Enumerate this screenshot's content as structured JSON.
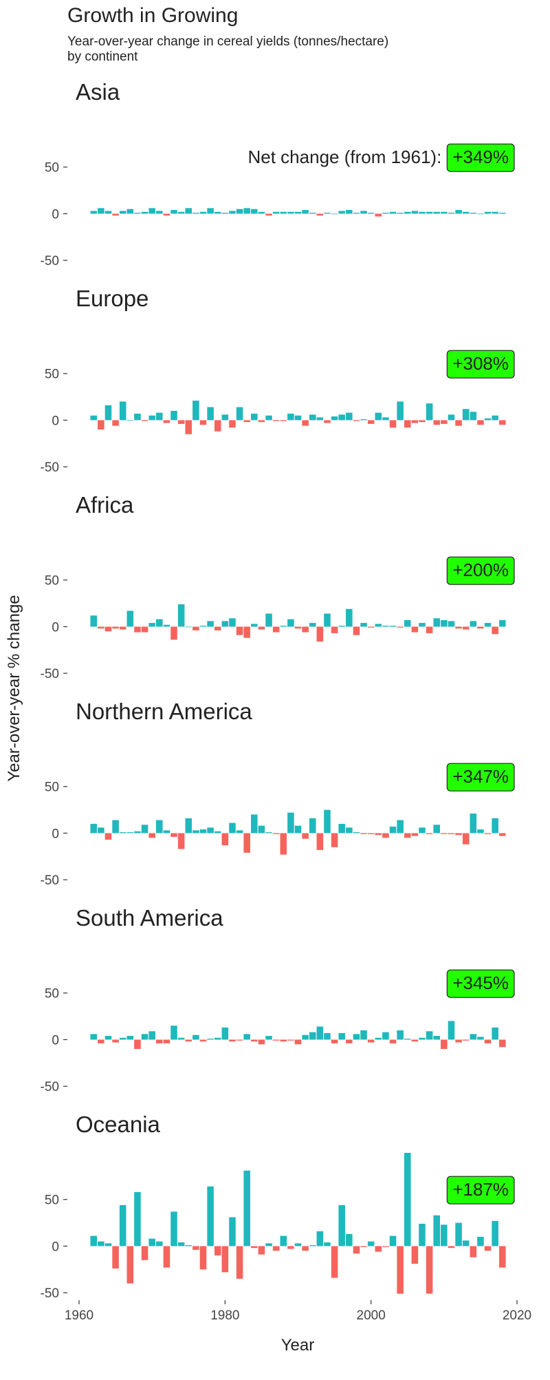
{
  "chart_data": {
    "type": "bar",
    "title": "Growth in Growing",
    "subtitle": [
      "Year-over-year change in cereal yields (tonnes/hectare)",
      "by continent"
    ],
    "x_label": "Year",
    "y_label": "Year-over-year % change",
    "positive_color": "#1fb8bc",
    "negative_color": "#f4645c",
    "badge_color": "#22ff00",
    "xlim": [
      1960,
      2020
    ],
    "xticks": [
      1960,
      1980,
      2000,
      2020
    ],
    "ylim": [
      -55,
      100
    ],
    "yticks": [
      50,
      0,
      -50
    ],
    "x": [
      1962,
      1963,
      1964,
      1965,
      1966,
      1967,
      1968,
      1969,
      1970,
      1971,
      1972,
      1973,
      1974,
      1975,
      1976,
      1977,
      1978,
      1979,
      1980,
      1981,
      1982,
      1983,
      1984,
      1985,
      1986,
      1987,
      1988,
      1989,
      1990,
      1991,
      1992,
      1993,
      1994,
      1995,
      1996,
      1997,
      1998,
      1999,
      2000,
      2001,
      2002,
      2003,
      2004,
      2005,
      2006,
      2007,
      2008,
      2009,
      2010,
      2011,
      2012,
      2013,
      2014,
      2015,
      2016,
      2017,
      2018
    ],
    "facets": [
      {
        "name": "Asia",
        "net_change_caption": "Net change (from 1961):",
        "net_change": 349,
        "net_change_label": "+349%",
        "values": [
          3,
          6,
          3,
          -2,
          3,
          5,
          1,
          2,
          6,
          3,
          -2,
          4,
          2,
          6,
          1,
          2,
          6,
          2,
          1,
          3,
          5,
          6,
          5,
          2,
          -2,
          2,
          2,
          2,
          2,
          4,
          1,
          -2,
          1,
          0,
          3,
          4,
          1,
          3,
          1,
          -3,
          1,
          2,
          1,
          2,
          3,
          2,
          2,
          2,
          2,
          1,
          4,
          2,
          1,
          0,
          2,
          2,
          1
        ]
      },
      {
        "name": "Europe",
        "net_change": 308,
        "net_change_label": "+308%",
        "values": [
          5,
          -10,
          16,
          -6,
          20,
          0,
          7,
          -1,
          5,
          8,
          -3,
          10,
          -4,
          -15,
          21,
          -5,
          14,
          -12,
          6,
          -8,
          14,
          -2,
          7,
          -2,
          5,
          -1,
          -1,
          7,
          5,
          -6,
          6,
          3,
          -3,
          4,
          6,
          8,
          -1,
          1,
          -4,
          8,
          3,
          -8,
          20,
          -8,
          -3,
          -2,
          18,
          -5,
          -4,
          6,
          -6,
          12,
          9,
          -5,
          2,
          5,
          -5
        ]
      },
      {
        "name": "Africa",
        "net_change": 200,
        "net_change_label": "+200%",
        "values": [
          12,
          -2,
          -5,
          -2,
          -3,
          17,
          -6,
          -6,
          4,
          8,
          2,
          -14,
          24,
          0,
          -4,
          1,
          6,
          -4,
          6,
          9,
          -9,
          -12,
          3,
          -3,
          14,
          -6,
          1,
          8,
          -2,
          -6,
          4,
          -16,
          14,
          -7,
          1,
          19,
          -9,
          4,
          -1,
          3,
          1,
          1,
          -1,
          7,
          -6,
          4,
          -7,
          9,
          7,
          6,
          -2,
          -3,
          6,
          -2,
          4,
          -8,
          7
        ]
      },
      {
        "name": "Northern America",
        "net_change": 347,
        "net_change_label": "+347%",
        "values": [
          10,
          6,
          -7,
          14,
          1,
          1,
          2,
          9,
          -5,
          14,
          3,
          -4,
          -17,
          16,
          3,
          4,
          6,
          2,
          -13,
          11,
          3,
          -21,
          20,
          8,
          1,
          -1,
          -23,
          22,
          8,
          -6,
          16,
          -18,
          25,
          -15,
          10,
          6,
          1,
          -1,
          -1,
          -2,
          -5,
          7,
          14,
          -5,
          -3,
          6,
          -1,
          9,
          -1,
          -1,
          -2,
          -12,
          21,
          4,
          -1,
          16,
          -3
        ]
      },
      {
        "name": "South America",
        "net_change": 345,
        "net_change_label": "+345%",
        "values": [
          6,
          -4,
          4,
          -3,
          2,
          4,
          -10,
          6,
          9,
          -4,
          -4,
          15,
          2,
          -2,
          5,
          -2,
          1,
          2,
          13,
          -2,
          -1,
          6,
          -2,
          -5,
          4,
          -1,
          -2,
          -1,
          -5,
          5,
          8,
          14,
          7,
          -4,
          7,
          -4,
          6,
          10,
          -3,
          2,
          8,
          -4,
          10,
          1,
          -2,
          2,
          9,
          4,
          -10,
          20,
          -3,
          -1,
          6,
          3,
          -4,
          13,
          -8
        ]
      },
      {
        "name": "Oceania",
        "net_change": 187,
        "net_change_label": "+187%",
        "values": [
          11,
          5,
          3,
          -24,
          44,
          -40,
          58,
          -15,
          8,
          5,
          -23,
          37,
          4,
          1,
          -4,
          -25,
          64,
          -10,
          -28,
          31,
          -35,
          81,
          -2,
          -9,
          3,
          -5,
          11,
          -3,
          3,
          -5,
          1,
          16,
          4,
          -34,
          44,
          13,
          -8,
          -1,
          5,
          -6,
          -1,
          11,
          -51,
          100,
          -19,
          24,
          -51,
          33,
          23,
          -2,
          25,
          6,
          -12,
          10,
          -5,
          27,
          -23
        ]
      }
    ]
  }
}
